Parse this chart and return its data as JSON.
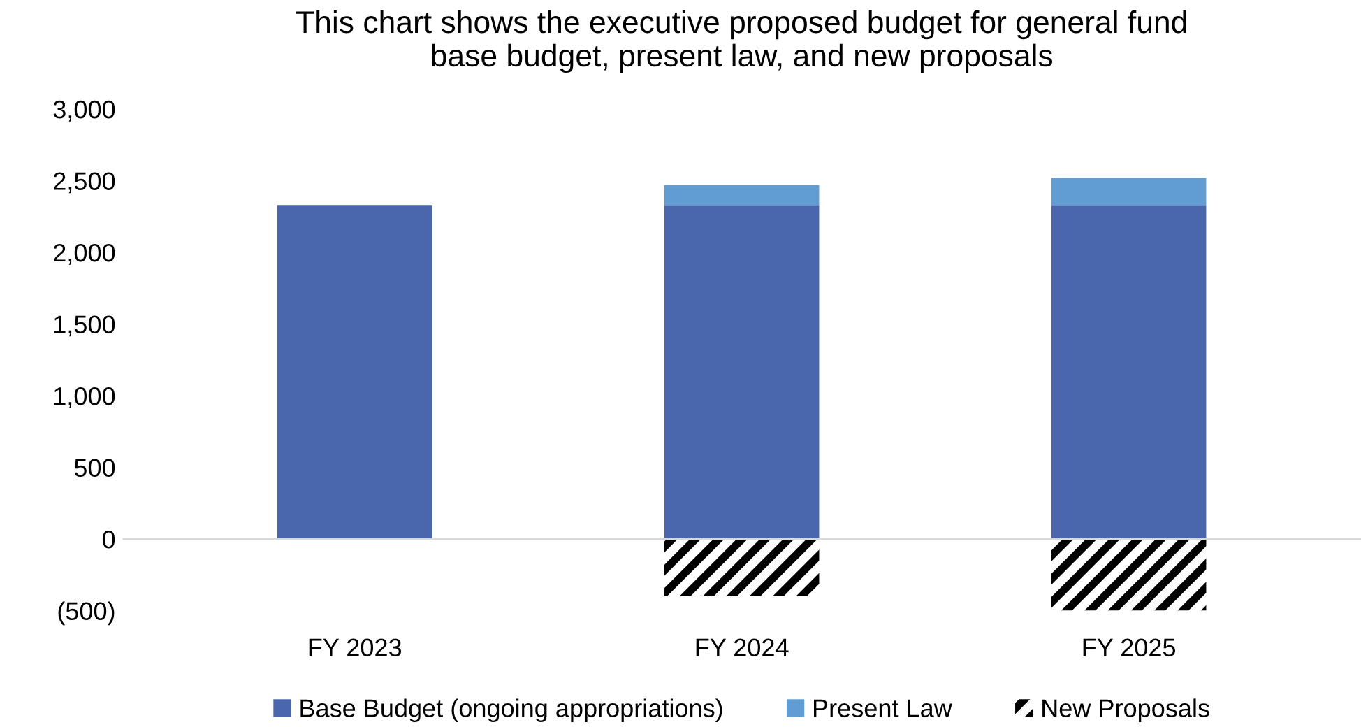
{
  "chart_data": {
    "type": "bar",
    "title": "This chart shows the executive proposed budget for general fund\nbase budget, present law, and new proposals",
    "categories": [
      "FY 2023",
      "FY 2024",
      "FY 2025"
    ],
    "stacked": true,
    "series": [
      {
        "name": "Base Budget (ongoing appropriations)",
        "color": "#4a67ae",
        "values": [
          2330,
          2330,
          2330
        ]
      },
      {
        "name": "Present Law",
        "color": "#619dd3",
        "values": [
          0,
          140,
          190
        ]
      },
      {
        "name": "New Proposals",
        "color": "#000000",
        "values": [
          0,
          -400,
          -500
        ]
      }
    ],
    "ylim": [
      -500,
      3000
    ],
    "yticks": [
      {
        "value": -500,
        "label": "(500)"
      },
      {
        "value": 0,
        "label": "0"
      },
      {
        "value": 500,
        "label": "500"
      },
      {
        "value": 1000,
        "label": "1,000"
      },
      {
        "value": 1500,
        "label": "1,500"
      },
      {
        "value": 2000,
        "label": "2,000"
      },
      {
        "value": 2500,
        "label": "2,500"
      },
      {
        "value": 3000,
        "label": "3,000"
      }
    ],
    "ref_lines": [
      {
        "axis": "y",
        "value": 0,
        "color": "#d9d9d9"
      }
    ],
    "legend": "bottom"
  }
}
